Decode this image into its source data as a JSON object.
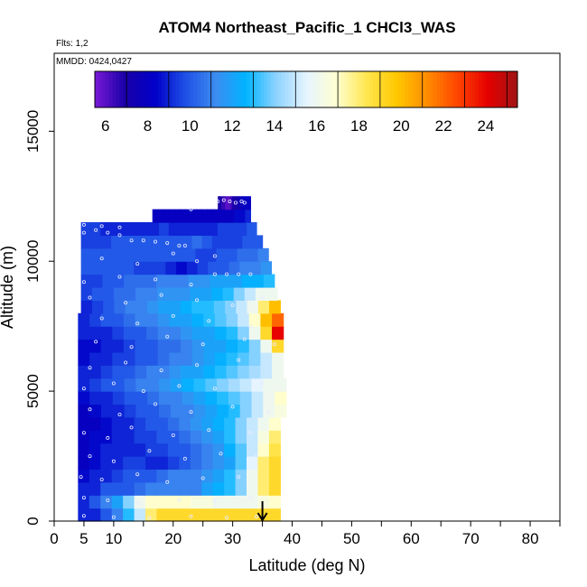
{
  "title": "ATOM4 Northeast_Pacific_1 CHCl3_WAS",
  "flights_label": "Flts: 1,2",
  "mmdd_label": "MMDD: 0424,0427",
  "chart_data": {
    "type": "heatmap",
    "title": "ATOM4 Northeast_Pacific_1 CHCl3_WAS",
    "xlabel": "Latitude (deg N)",
    "ylabel": "Altitude (m)",
    "xlim": [
      0,
      85
    ],
    "ylim": [
      0,
      18000
    ],
    "x_ticks": [
      0,
      5,
      10,
      20,
      30,
      40,
      50,
      60,
      70,
      80
    ],
    "y_ticks": [
      0,
      5000,
      10000,
      15000
    ],
    "colorbar": {
      "min": 5.5,
      "max": 25.5,
      "ticks": [
        6,
        8,
        10,
        12,
        14,
        16,
        18,
        20,
        22,
        24
      ],
      "colors": [
        "#7a1ad6",
        "#1a00a8",
        "#0000c8",
        "#1f50e6",
        "#3c8cf0",
        "#00b4ff",
        "#8cd2ff",
        "#e6f4ff",
        "#ffffd2",
        "#ffe650",
        "#ffc800",
        "#ff8c00",
        "#ff4600",
        "#e60000",
        "#a01414"
      ]
    },
    "arrow_latitude": 35,
    "curtain_rows": [
      {
        "alt": [
          0,
          500
        ],
        "lat": [
          4,
          38
        ],
        "values": [
          9,
          9,
          10,
          11,
          13,
          15,
          18,
          19,
          19,
          19,
          19,
          19,
          19,
          19,
          19,
          19,
          19,
          19
        ]
      },
      {
        "alt": [
          500,
          1000
        ],
        "lat": [
          4,
          38
        ],
        "values": [
          9,
          10,
          11,
          12,
          14,
          16,
          17,
          17,
          17,
          17,
          16.5,
          16.5,
          16,
          16,
          16,
          16,
          16.5,
          17
        ]
      },
      {
        "alt": [
          1000,
          1500
        ],
        "lat": [
          4,
          38
        ],
        "values": [
          9,
          9,
          10,
          10,
          10,
          10.5,
          11,
          11,
          11,
          11,
          11,
          12,
          12.5,
          13,
          14,
          16,
          18,
          19
        ]
      },
      {
        "alt": [
          1500,
          2000
        ],
        "lat": [
          4,
          38
        ],
        "values": [
          8.5,
          9,
          9,
          9.5,
          10,
          10,
          10,
          10.5,
          11,
          11,
          11,
          11.5,
          12,
          13,
          14,
          16,
          18,
          19
        ]
      },
      {
        "alt": [
          2000,
          2500
        ],
        "lat": [
          4,
          38
        ],
        "values": [
          8,
          8.5,
          9,
          9,
          9.5,
          9.5,
          9,
          9,
          9.5,
          10,
          10.5,
          11,
          11.5,
          12,
          13.5,
          15.5,
          18,
          19
        ]
      },
      {
        "alt": [
          2500,
          3000
        ],
        "lat": [
          4,
          38
        ],
        "values": [
          8,
          8.5,
          9,
          9,
          9,
          9,
          9.5,
          9.5,
          10,
          10,
          10.5,
          11,
          11.5,
          12.5,
          13.5,
          15,
          17,
          18.5
        ]
      },
      {
        "alt": [
          3000,
          3500
        ],
        "lat": [
          4,
          38
        ],
        "values": [
          8,
          8.5,
          8.5,
          9,
          9,
          9.5,
          9.5,
          10,
          10,
          10.5,
          11,
          11.5,
          12,
          13,
          14,
          15,
          16.5,
          18
        ]
      },
      {
        "alt": [
          3500,
          4000
        ],
        "lat": [
          4,
          38
        ],
        "values": [
          8,
          8,
          8.5,
          9,
          9,
          9.5,
          10,
          10,
          10.5,
          11,
          11.5,
          12,
          12.5,
          13,
          14,
          15,
          16,
          17
        ]
      },
      {
        "alt": [
          4000,
          4500
        ],
        "lat": [
          4,
          39
        ],
        "values": [
          8,
          8.5,
          9,
          9,
          9.5,
          10,
          10,
          10.5,
          11,
          11,
          11.5,
          12,
          12.5,
          13,
          14,
          15,
          16,
          16.5
        ]
      },
      {
        "alt": [
          4500,
          5000
        ],
        "lat": [
          4,
          39
        ],
        "values": [
          8.5,
          9,
          9,
          9.5,
          10,
          10,
          10.5,
          11,
          11,
          11.5,
          12,
          12.5,
          13,
          13.5,
          14,
          15,
          16,
          17
        ]
      },
      {
        "alt": [
          5000,
          5500
        ],
        "lat": [
          4,
          39
        ],
        "values": [
          9,
          9.5,
          10,
          10,
          10.5,
          11,
          11,
          11.5,
          12,
          12.5,
          13,
          13.5,
          14,
          14.5,
          15,
          15.5,
          16,
          16
        ]
      },
      {
        "alt": [
          5500,
          6000
        ],
        "lat": [
          4,
          38.5
        ],
        "values": [
          9,
          9,
          9.5,
          10,
          10,
          10.5,
          11,
          11,
          11.5,
          12,
          12,
          12.5,
          13,
          13.5,
          14,
          14.5,
          15,
          16
        ]
      },
      {
        "alt": [
          6000,
          6500
        ],
        "lat": [
          4,
          38.5
        ],
        "values": [
          8.5,
          9,
          9,
          9.5,
          9.5,
          10,
          10,
          10.5,
          11,
          11,
          11.5,
          12,
          12.5,
          13,
          13.5,
          14,
          15,
          16
        ]
      },
      {
        "alt": [
          6500,
          7000
        ],
        "lat": [
          4,
          38.5
        ],
        "values": [
          8.5,
          8.5,
          9,
          9,
          9.5,
          10,
          10,
          10.5,
          10.5,
          11,
          11.5,
          12,
          12,
          12.5,
          13,
          14,
          16,
          19
        ]
      },
      {
        "alt": [
          7000,
          7500
        ],
        "lat": [
          4,
          38.5
        ],
        "values": [
          9,
          9,
          9,
          9.5,
          10,
          10,
          10.5,
          11,
          11,
          11.5,
          12,
          12,
          12.5,
          13,
          14,
          16,
          19,
          24
        ]
      },
      {
        "alt": [
          7500,
          8000
        ],
        "lat": [
          4,
          38.5
        ],
        "values": [
          9,
          9.5,
          10,
          10,
          10.5,
          11,
          11,
          11.5,
          12,
          12,
          12.5,
          13,
          13.5,
          14,
          15,
          17,
          20,
          22
        ]
      },
      {
        "alt": [
          8000,
          8500
        ],
        "lat": [
          4.5,
          38
        ],
        "values": [
          9,
          9.5,
          10,
          10.5,
          11,
          11,
          11.5,
          12,
          12,
          12.5,
          13,
          13,
          13.5,
          14,
          15,
          16,
          18,
          20
        ]
      },
      {
        "alt": [
          8500,
          9000
        ],
        "lat": [
          4.5,
          37.5
        ],
        "values": [
          9.5,
          10,
          10,
          10.5,
          10.5,
          11,
          11,
          11.5,
          11.5,
          11.5,
          12,
          12,
          12.5,
          13,
          14,
          15,
          16,
          16
        ]
      },
      {
        "alt": [
          9000,
          9500
        ],
        "lat": [
          4.5,
          37
        ],
        "values": [
          9.5,
          9.5,
          10,
          10,
          10.5,
          10.5,
          10.5,
          11,
          11,
          11,
          11.5,
          11.5,
          12,
          12,
          12,
          12.5,
          12.5,
          13
        ]
      },
      {
        "alt": [
          9500,
          10000
        ],
        "lat": [
          4.5,
          36.5
        ],
        "values": [
          10,
          10,
          10,
          10,
          10,
          9.5,
          9.5,
          9.5,
          9,
          8.5,
          9,
          9.5,
          10,
          10,
          10.5,
          11,
          11,
          11.5
        ]
      },
      {
        "alt": [
          10000,
          10500
        ],
        "lat": [
          4.5,
          36
        ],
        "values": [
          10,
          10,
          10,
          10,
          10,
          10,
          10,
          10,
          10,
          10,
          10,
          9.5,
          9.5,
          10,
          10,
          10.5,
          10.5,
          11
        ]
      },
      {
        "alt": [
          10500,
          11000
        ],
        "lat": [
          4.5,
          35
        ],
        "values": [
          9.5,
          9.5,
          9.5,
          10,
          10,
          10,
          10,
          10,
          10,
          10,
          10,
          10.5,
          10,
          9.5,
          9.5,
          9.5,
          10,
          10
        ]
      },
      {
        "alt": [
          11000,
          11500
        ],
        "lat": [
          4.5,
          34
        ],
        "values": [
          9.5,
          9.5,
          9,
          9,
          9,
          9,
          9,
          9,
          9.5,
          9,
          9,
          9,
          9,
          9,
          9.5,
          9.5,
          9.5,
          10
        ]
      },
      {
        "alt": [
          11500,
          12000
        ],
        "lat": [
          16.5,
          33
        ],
        "values": [
          8,
          8,
          8,
          8,
          8,
          8,
          8,
          8,
          8,
          8,
          8,
          8,
          8,
          8,
          8,
          8.5,
          8.5,
          9
        ]
      },
      {
        "alt": [
          12000,
          12500
        ],
        "lat": [
          27.5,
          33
        ],
        "values": [
          7,
          7,
          6.5,
          6.5,
          6,
          6,
          6,
          6.5,
          7,
          7,
          7,
          7.5,
          7.5,
          8,
          8,
          8,
          8,
          8
        ]
      }
    ],
    "sample_points": [
      [
        5,
        200
      ],
      [
        10,
        150
      ],
      [
        16,
        120
      ],
      [
        23,
        180
      ],
      [
        29,
        130
      ],
      [
        34,
        170
      ],
      [
        5,
        900
      ],
      [
        9,
        800
      ],
      [
        14,
        700
      ],
      [
        21,
        820
      ],
      [
        27,
        780
      ],
      [
        33,
        900
      ],
      [
        4.5,
        1700
      ],
      [
        8,
        1600
      ],
      [
        14,
        1800
      ],
      [
        19,
        1500
      ],
      [
        25,
        1650
      ],
      [
        31,
        1700
      ],
      [
        6,
        2500
      ],
      [
        10,
        2300
      ],
      [
        16,
        2700
      ],
      [
        22,
        2400
      ],
      [
        28,
        2600
      ],
      [
        34,
        2500
      ],
      [
        5,
        3400
      ],
      [
        9,
        3200
      ],
      [
        13,
        3600
      ],
      [
        20,
        3300
      ],
      [
        26,
        3500
      ],
      [
        33,
        3400
      ],
      [
        6,
        4300
      ],
      [
        11,
        4100
      ],
      [
        17,
        4500
      ],
      [
        23,
        4200
      ],
      [
        30,
        4400
      ],
      [
        36,
        4200
      ],
      [
        5,
        5100
      ],
      [
        10,
        5300
      ],
      [
        15,
        5000
      ],
      [
        21,
        5200
      ],
      [
        27,
        5100
      ],
      [
        35,
        5300
      ],
      [
        6,
        5900
      ],
      [
        12,
        6100
      ],
      [
        18,
        5800
      ],
      [
        24,
        6000
      ],
      [
        31,
        6200
      ],
      [
        7,
        6900
      ],
      [
        13,
        6700
      ],
      [
        19,
        7100
      ],
      [
        25,
        6800
      ],
      [
        32,
        7000
      ],
      [
        37,
        6800
      ],
      [
        8,
        7800
      ],
      [
        14,
        7600
      ],
      [
        20,
        7900
      ],
      [
        26,
        7700
      ],
      [
        33,
        7500
      ],
      [
        6,
        8600
      ],
      [
        12,
        8400
      ],
      [
        18,
        8700
      ],
      [
        24,
        8500
      ],
      [
        30,
        8300
      ],
      [
        35,
        8600
      ],
      [
        5,
        9200
      ],
      [
        11,
        9400
      ],
      [
        17,
        9300
      ],
      [
        23,
        9100
      ],
      [
        27,
        9500
      ],
      [
        29,
        9500
      ],
      [
        31,
        9500
      ],
      [
        33,
        9500
      ],
      [
        8,
        10100
      ],
      [
        14,
        9900
      ],
      [
        20,
        10300
      ],
      [
        24,
        10000
      ],
      [
        27,
        10200
      ],
      [
        5,
        11100
      ],
      [
        7,
        11200
      ],
      [
        9,
        11100
      ],
      [
        11,
        11000
      ],
      [
        13,
        10800
      ],
      [
        15,
        10800
      ],
      [
        17,
        10750
      ],
      [
        19,
        10700
      ],
      [
        21,
        10600
      ],
      [
        22,
        10600
      ],
      [
        5,
        11400
      ],
      [
        8,
        11350
      ],
      [
        11,
        11300
      ],
      [
        23,
        12000
      ],
      [
        27.5,
        12300
      ],
      [
        28.5,
        12350
      ],
      [
        29.5,
        12300
      ],
      [
        30.5,
        12250
      ],
      [
        31.5,
        12300
      ],
      [
        32,
        12250
      ]
    ]
  }
}
